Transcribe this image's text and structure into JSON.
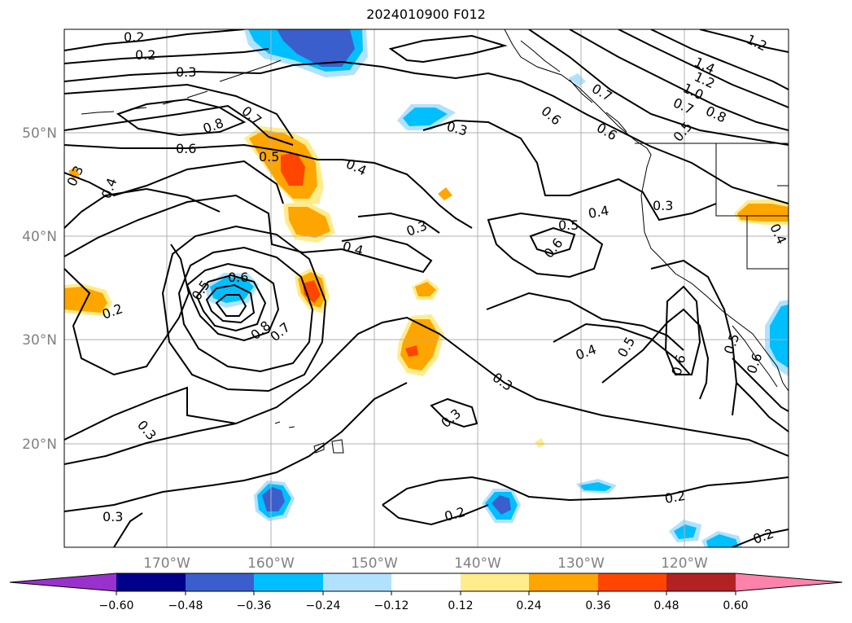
{
  "title": "2024010900 F012",
  "lat_labels": [
    "50°N",
    "40°N",
    "30°N",
    "20°N"
  ],
  "lon_labels": [
    "170°W",
    "160°W",
    "150°W",
    "140°W",
    "130°W",
    "120°W"
  ],
  "colorbar": {
    "ticks": [
      "−0.60",
      "−0.48",
      "−0.36",
      "−0.24",
      "−0.12",
      "0.12",
      "0.24",
      "0.36",
      "0.48",
      "0.60"
    ],
    "colors": [
      "#9932cc",
      "#00008b",
      "#3a5fcd",
      "#00bfff",
      "#b0e2ff",
      "#ffffff",
      "#ffec8b",
      "#ffa500",
      "#ff4500",
      "#b22222",
      "#ff82ab"
    ]
  },
  "contour_labels": [
    "0.2",
    "0.2",
    "0.3",
    "0.7",
    "0.8",
    "0.6",
    "0.5",
    "0.4",
    "0.3",
    "0.4",
    "0.3",
    "0.3",
    "0.4",
    "0.5",
    "0.6",
    "0.4",
    "0.3",
    "0.6",
    "0.7",
    "0.6",
    "0.5",
    "0.7",
    "0.8",
    "1.0",
    "1.2",
    "1.4",
    "1.2",
    "0.2",
    "0.8",
    "0.7",
    "0.5",
    "0.6",
    "0.3",
    "0.4",
    "0.5",
    "0.6",
    "0.3",
    "0.3",
    "0.3",
    "0.2",
    "0.2",
    "0.2",
    "0.4",
    "0.5",
    "0.6"
  ]
}
